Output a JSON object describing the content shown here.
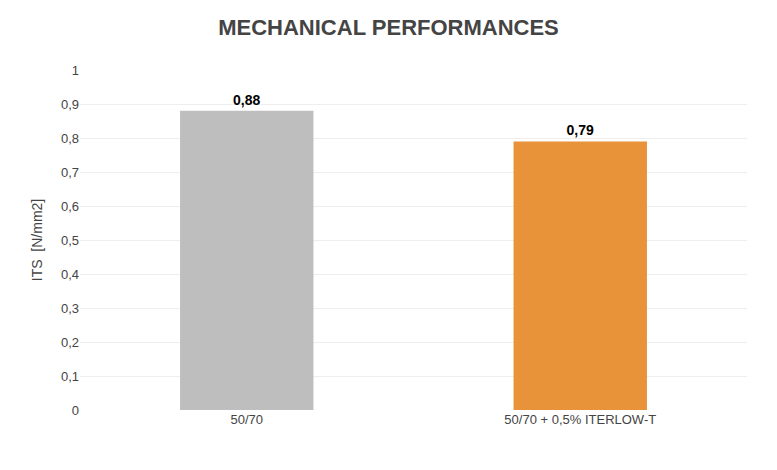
{
  "chart_data": {
    "type": "bar",
    "title": "MECHANICAL PERFORMANCES",
    "categories": [
      "50/70",
      "50/70 + 0,5% ITERLOW-T"
    ],
    "values": [
      0.88,
      0.79
    ],
    "value_labels": [
      "0,88",
      "0,79"
    ],
    "colors": [
      "#bebebe",
      "#e8923a"
    ],
    "ylabel": "ITS  [N/mm2]",
    "ylim": [
      0,
      1.0
    ],
    "yticks": [
      0,
      {
        "value": 0.1,
        "label": "0,1"
      },
      {
        "value": 0.2,
        "label": "0,2"
      },
      {
        "value": 0.3,
        "label": "0,3"
      },
      {
        "value": 0.4,
        "label": "0,4"
      },
      {
        "value": 0.5,
        "label": "0,5"
      },
      {
        "value": 0.6,
        "label": "0,6"
      },
      {
        "value": 0.7,
        "label": "0,7"
      },
      {
        "value": 0.8,
        "label": "0,8"
      },
      {
        "value": 0.9,
        "label": "0,9"
      },
      1
    ],
    "grid": true,
    "data_labels": true
  }
}
